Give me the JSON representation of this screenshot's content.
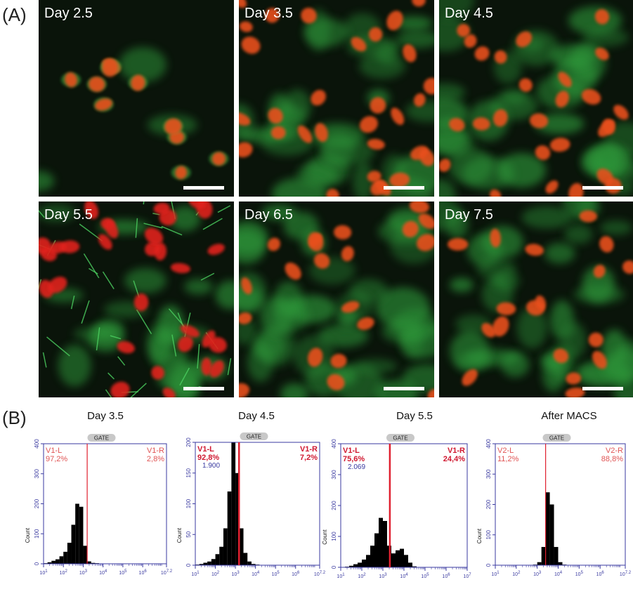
{
  "panel_a": {
    "label": "(A)",
    "images": [
      {
        "label": "Day 2.5"
      },
      {
        "label": "Day 3.5"
      },
      {
        "label": "Day 4.5"
      },
      {
        "label": "Day 5.5"
      },
      {
        "label": "Day 6.5"
      },
      {
        "label": "Day 7.5"
      }
    ]
  },
  "panel_b": {
    "label": "(B)",
    "histograms": [
      {
        "title": "Day 3.5",
        "gate_label": "GATE",
        "ylabel": "Count",
        "ylim": [
          0,
          400
        ],
        "yticks": [
          0,
          100,
          200,
          300,
          400
        ],
        "xlim": [
          1,
          7.2
        ],
        "xtick_base": "10",
        "xticks": [
          1,
          2,
          3,
          4,
          5,
          6,
          7.2
        ],
        "left_label": "V1-L",
        "left_value": "97,2%",
        "right_label": "V1-R",
        "right_value": "2,8%",
        "gate": 3.2,
        "bins": [
          1.0,
          1.2,
          1.4,
          1.6,
          1.8,
          2.0,
          2.2,
          2.4,
          2.6,
          2.8,
          3.0,
          3.2,
          3.4,
          3.6,
          3.8,
          4.0,
          4.2,
          4.4,
          4.6
        ],
        "counts": [
          2,
          5,
          10,
          15,
          25,
          40,
          70,
          130,
          200,
          190,
          60,
          8,
          3,
          2,
          1,
          0,
          0,
          0
        ]
      },
      {
        "title": "Day 4.5",
        "gate_label": "GATE",
        "ylabel": "Count",
        "ylim": [
          0,
          200
        ],
        "yticks": [
          0,
          50,
          100,
          150,
          200
        ],
        "xlim": [
          1,
          7.2
        ],
        "xtick_base": "10",
        "xticks": [
          1,
          2,
          3,
          4,
          5,
          6,
          7.2
        ],
        "left_label": "V1-L",
        "left_value": "92,8%",
        "marker_value": "1.900",
        "right_label": "V1-R",
        "right_value": "7,2%",
        "gate": 3.18,
        "bins": [
          1.0,
          1.2,
          1.4,
          1.6,
          1.8,
          2.0,
          2.2,
          2.4,
          2.6,
          2.8,
          3.0,
          3.2,
          3.4,
          3.6,
          3.8,
          4.0,
          4.2,
          4.4,
          4.6
        ],
        "counts": [
          1,
          2,
          4,
          6,
          10,
          18,
          30,
          60,
          120,
          200,
          150,
          60,
          20,
          6,
          2,
          1,
          0,
          0
        ]
      },
      {
        "title": "Day 5.5",
        "gate_label": "GATE",
        "ylabel": "Count",
        "ylim": [
          0,
          400
        ],
        "yticks": [
          0,
          100,
          200,
          300,
          400
        ],
        "xlim": [
          1,
          7
        ],
        "xtick_base": "10",
        "xticks": [
          1,
          2,
          3,
          4,
          5,
          6,
          7
        ],
        "left_label": "V1-L",
        "left_value": "75,6%",
        "marker_value": "2.069",
        "right_label": "V1-R",
        "right_value": "24,4%",
        "gate": 3.33,
        "bins": [
          1.0,
          1.2,
          1.4,
          1.6,
          1.8,
          2.0,
          2.2,
          2.4,
          2.6,
          2.8,
          3.0,
          3.2,
          3.4,
          3.6,
          3.8,
          4.0,
          4.2,
          4.4,
          4.6
        ],
        "counts": [
          0,
          2,
          5,
          10,
          15,
          25,
          40,
          70,
          110,
          160,
          150,
          70,
          45,
          55,
          60,
          40,
          15,
          3
        ]
      },
      {
        "title": "After MACS",
        "gate_label": "GATE",
        "ylabel": "Count",
        "ylim": [
          0,
          400
        ],
        "yticks": [
          0,
          100,
          200,
          300,
          400
        ],
        "xlim": [
          1,
          7.2
        ],
        "xtick_base": "10",
        "xticks": [
          1,
          2,
          3,
          4,
          5,
          6,
          7.2
        ],
        "left_label": "V2-L",
        "left_value": "11,2%",
        "right_label": "V2-R",
        "right_value": "88,8%",
        "gate": 3.4,
        "bins": [
          1.0,
          1.2,
          1.4,
          1.6,
          1.8,
          2.0,
          2.2,
          2.4,
          2.6,
          2.8,
          3.0,
          3.2,
          3.4,
          3.6,
          3.8,
          4.0,
          4.2,
          4.4,
          4.6
        ],
        "counts": [
          0,
          0,
          0,
          0,
          0,
          0,
          0,
          0,
          0,
          2,
          10,
          60,
          240,
          200,
          60,
          10,
          2,
          0
        ]
      }
    ]
  }
}
